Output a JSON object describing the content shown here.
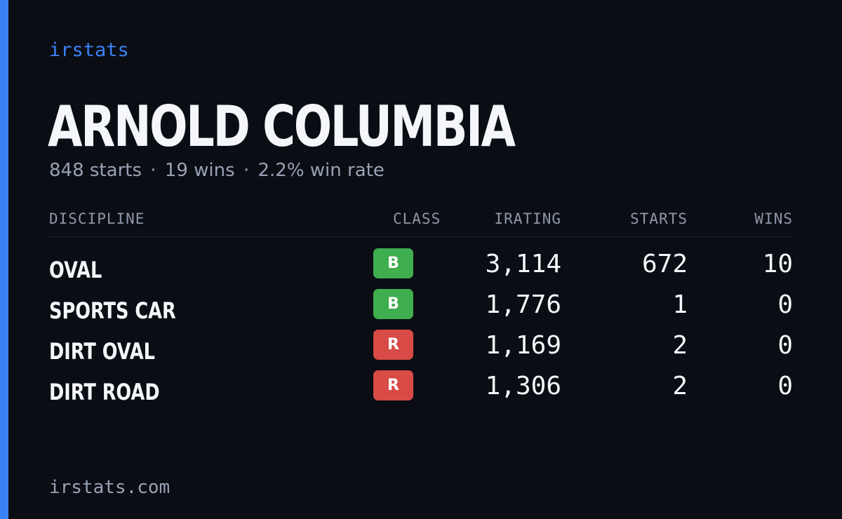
{
  "brand": "irstats",
  "driver_name": "ARNOLD COLUMBIA",
  "summary": {
    "starts": "848 starts",
    "wins": "19 wins",
    "win_rate": "2.2% win rate",
    "separator": "·"
  },
  "table": {
    "headers": {
      "discipline": "DISCIPLINE",
      "class": "CLASS",
      "irating": "IRATING",
      "starts": "STARTS",
      "wins": "WINS"
    },
    "rows": [
      {
        "discipline": "OVAL",
        "class": "B",
        "class_color": "#3fae4f",
        "irating": "3,114",
        "starts": "672",
        "wins": "10"
      },
      {
        "discipline": "SPORTS CAR",
        "class": "B",
        "class_color": "#3fae4f",
        "irating": "1,776",
        "starts": "1",
        "wins": "0"
      },
      {
        "discipline": "DIRT OVAL",
        "class": "R",
        "class_color": "#d94b47",
        "irating": "1,169",
        "starts": "2",
        "wins": "0"
      },
      {
        "discipline": "DIRT ROAD",
        "class": "R",
        "class_color": "#d94b47",
        "irating": "1,306",
        "starts": "2",
        "wins": "0"
      }
    ]
  },
  "footer": "irstats.com",
  "colors": {
    "background": "#0a0d14",
    "accent": "#3b82f6",
    "class_b": "#3fae4f",
    "class_r": "#d94b47"
  }
}
